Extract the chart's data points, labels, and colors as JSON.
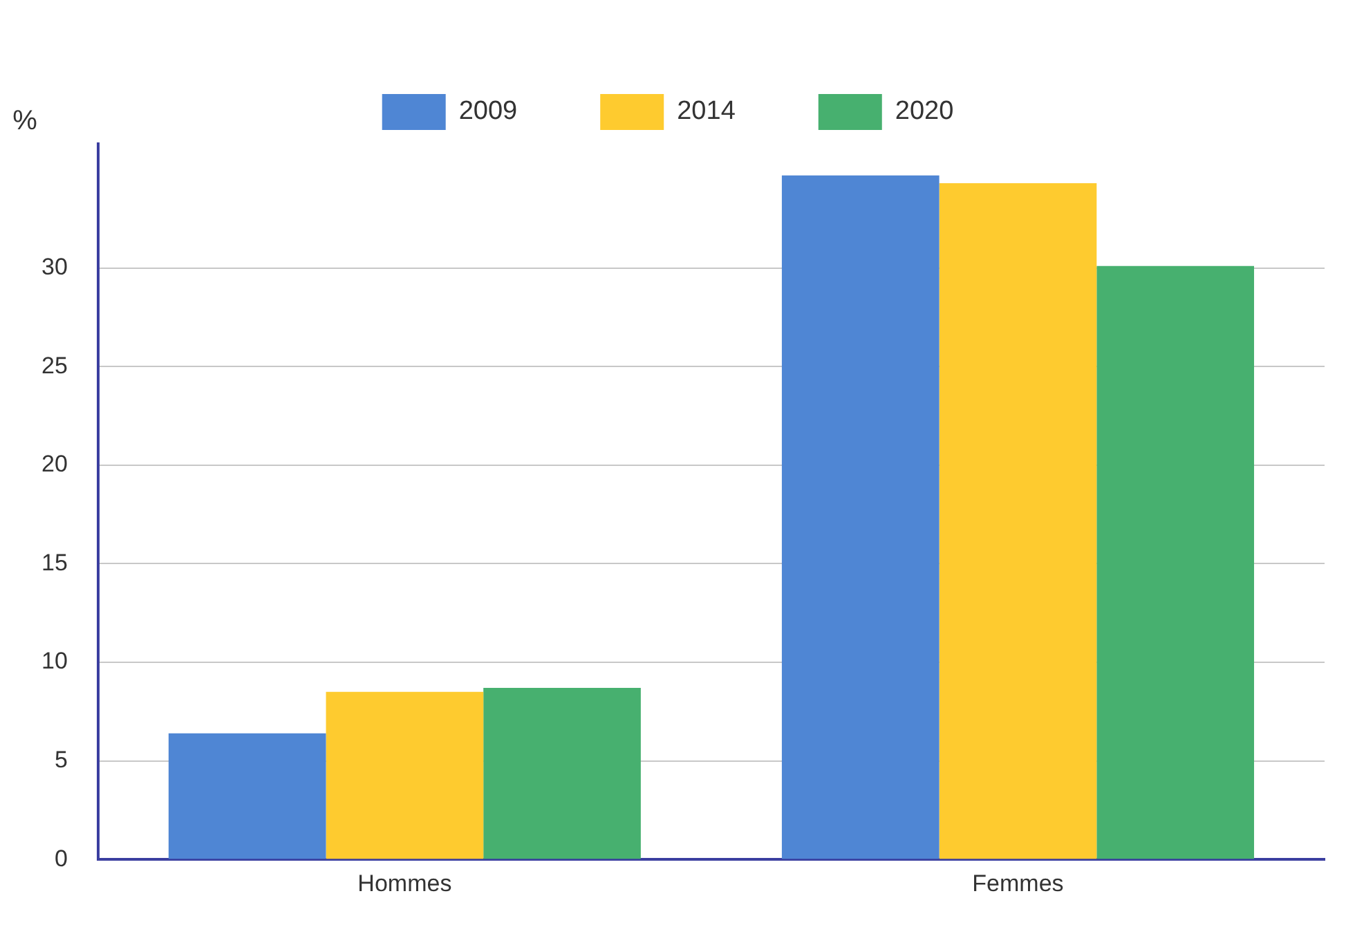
{
  "chart_data": {
    "type": "bar",
    "ylabel": "%",
    "categories": [
      "Hommes",
      "Femmes"
    ],
    "series": [
      {
        "name": "2009",
        "color": "#4f86d4",
        "values": [
          6.4,
          34.7
        ]
      },
      {
        "name": "2014",
        "color": "#fecb2f",
        "values": [
          8.5,
          34.3
        ]
      },
      {
        "name": "2020",
        "color": "#47b06f",
        "values": [
          8.7,
          30.1
        ]
      }
    ],
    "ylim": [
      0,
      36.3
    ],
    "yticks": [
      0,
      5,
      10,
      15,
      20,
      25,
      30
    ],
    "grid": "y",
    "legend": "top"
  }
}
